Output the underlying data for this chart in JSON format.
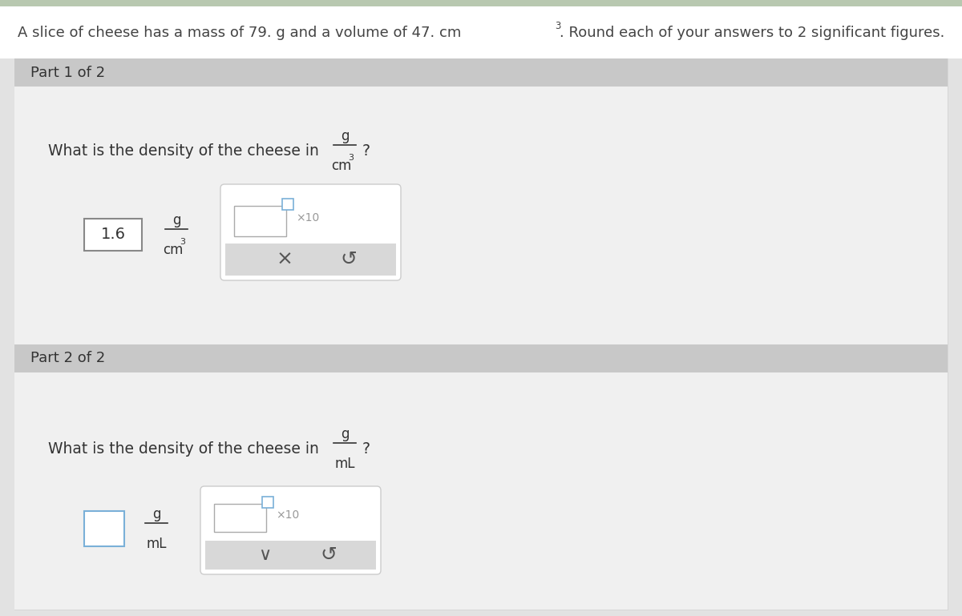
{
  "bg_color": "#e2e2e2",
  "white_bg": "#ffffff",
  "light_section_bg": "#f0f0f0",
  "header_bg": "#c8c8c8",
  "top_strip_color": "#b8c8b0",
  "title_text": "A slice of cheese has a mass of 79. g and a volume of 47. cm",
  "title_sup": "3",
  "title_suffix": ". Round each of your answers to 2 significant figures.",
  "part1_label": "Part 1 of 2",
  "part2_label": "Part 2 of 2",
  "part1_question": "What is the density of the cheese in",
  "part1_frac_num": "g",
  "part1_frac_den": "cm",
  "part1_frac_exp": "3",
  "part1_answer": "1.6",
  "part1_ans_num": "g",
  "part1_ans_den": "cm",
  "part1_ans_exp": "3",
  "part2_question": "What is the density of the cheese in",
  "part2_frac_num": "g",
  "part2_frac_den": "mL",
  "text_color": "#444444",
  "dark_text": "#333333",
  "medium_gray": "#999999",
  "light_gray_box": "#d8d8d8",
  "button_area_bg": "#cccccc",
  "input_border": "#aaaaaa",
  "blue_box_border": "#7ab0d8"
}
